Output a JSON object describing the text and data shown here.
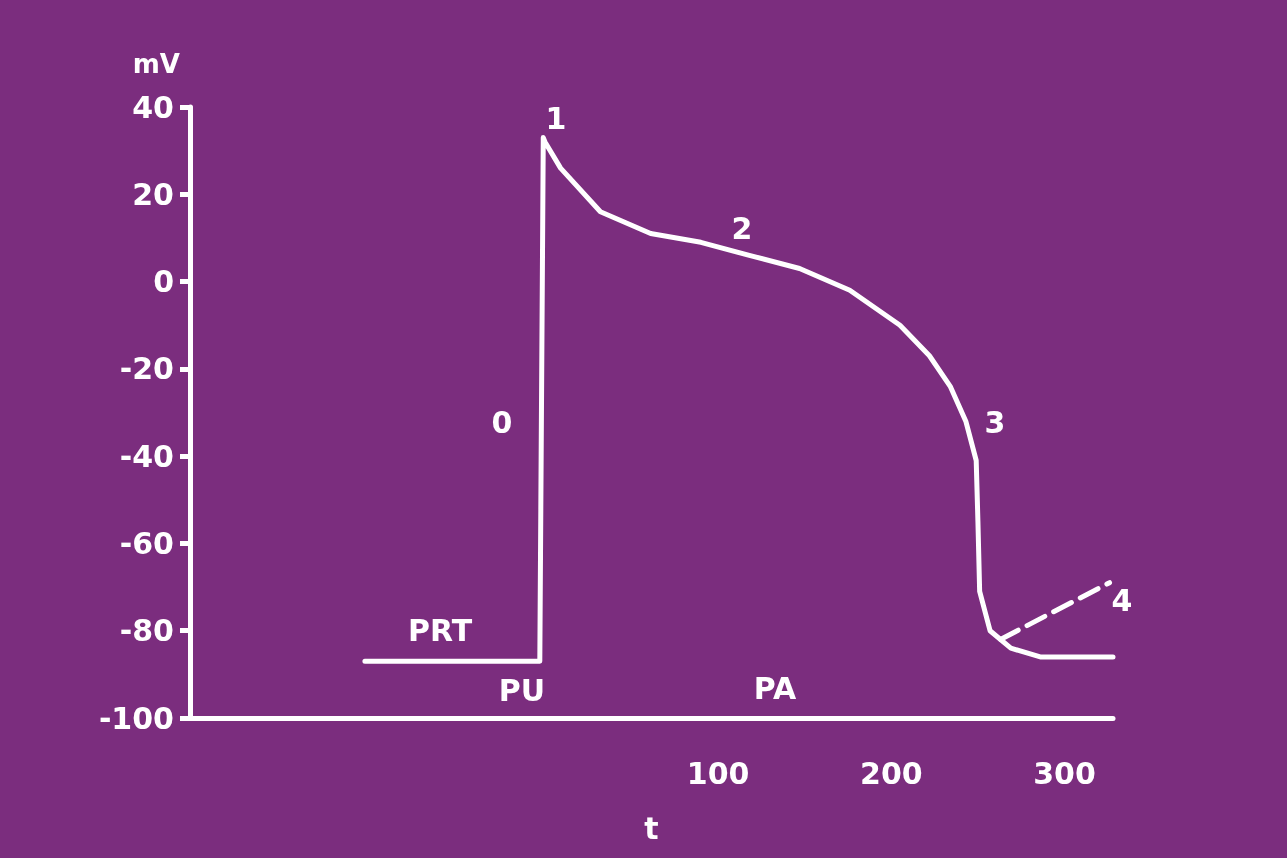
{
  "chart_data": {
    "type": "line",
    "xlabel": "t",
    "ylabel": "mV",
    "xlim": [
      -205,
      328
    ],
    "xticks": [
      100,
      200,
      300
    ],
    "ylim": [
      -100,
      40
    ],
    "yticks": [
      -100,
      -80,
      -60,
      -40,
      -20,
      0,
      20,
      40
    ],
    "marker": "none",
    "series": [
      {
        "color": "#ffffff",
        "line_style": "solid",
        "x": [
          -104,
          -3,
          -1,
          0,
          9,
          32,
          61,
          90,
          118,
          147,
          176,
          205,
          222,
          234,
          243,
          249,
          250,
          251,
          257,
          269,
          286,
          328
        ],
        "values": [
          -87,
          -87,
          33,
          32,
          26,
          16,
          11,
          9,
          6,
          3,
          -2,
          -10,
          -17,
          -24,
          -32,
          -41,
          -55,
          -71,
          -80,
          -84,
          -86,
          -86
        ]
      },
      {
        "color": "#ffffff",
        "line_style": "dashed",
        "x": [
          263,
          326
        ],
        "values": [
          -82,
          -69
        ]
      }
    ],
    "annotations": [
      "0",
      "1",
      "2",
      "3",
      "4",
      "PRT",
      "PU",
      "PA"
    ]
  }
}
